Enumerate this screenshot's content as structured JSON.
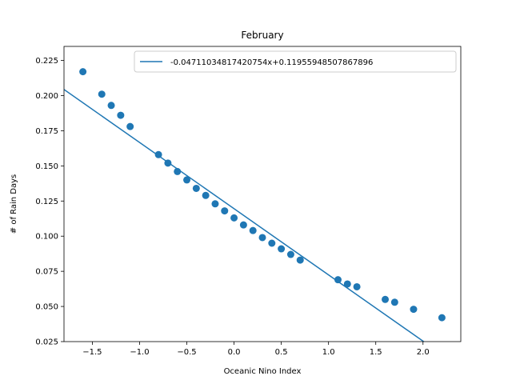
{
  "chart_data": {
    "type": "scatter",
    "title": "February",
    "xlabel": "Oceanic Nino Index",
    "ylabel": "# of Rain Days",
    "xlim": [
      -1.8,
      2.4
    ],
    "ylim": [
      0.025,
      0.235
    ],
    "grid": false,
    "legend_position": "top-right",
    "x_ticks": [
      "−1.5",
      "−1.0",
      "−0.5",
      "0.0",
      "0.5",
      "1.0",
      "1.5",
      "2.0"
    ],
    "y_ticks": [
      "0.025",
      "0.050",
      "0.075",
      "0.100",
      "0.125",
      "0.150",
      "0.175",
      "0.200",
      "0.225"
    ],
    "colors": {
      "series": "#1f77b4",
      "axes": "#000000"
    },
    "series": [
      {
        "type": "scatter",
        "points": [
          [
            -1.6,
            0.217
          ],
          [
            -1.4,
            0.201
          ],
          [
            -1.3,
            0.193
          ],
          [
            -1.2,
            0.186
          ],
          [
            -1.1,
            0.178
          ],
          [
            -0.8,
            0.158
          ],
          [
            -0.7,
            0.152
          ],
          [
            -0.6,
            0.146
          ],
          [
            -0.5,
            0.14
          ],
          [
            -0.4,
            0.134
          ],
          [
            -0.3,
            0.129
          ],
          [
            -0.2,
            0.123
          ],
          [
            -0.1,
            0.118
          ],
          [
            0.0,
            0.113
          ],
          [
            0.1,
            0.108
          ],
          [
            0.2,
            0.104
          ],
          [
            0.3,
            0.099
          ],
          [
            0.4,
            0.095
          ],
          [
            0.5,
            0.091
          ],
          [
            0.6,
            0.087
          ],
          [
            0.7,
            0.083
          ],
          [
            1.1,
            0.069
          ],
          [
            1.2,
            0.066
          ],
          [
            1.3,
            0.064
          ],
          [
            1.6,
            0.055
          ],
          [
            1.7,
            0.053
          ],
          [
            1.9,
            0.048
          ],
          [
            2.2,
            0.042
          ]
        ]
      },
      {
        "type": "line",
        "name": "-0.04711034817420754x+0.11955948507867896",
        "slope": -0.04711034817420754,
        "intercept": 0.11955948507867896
      }
    ]
  }
}
